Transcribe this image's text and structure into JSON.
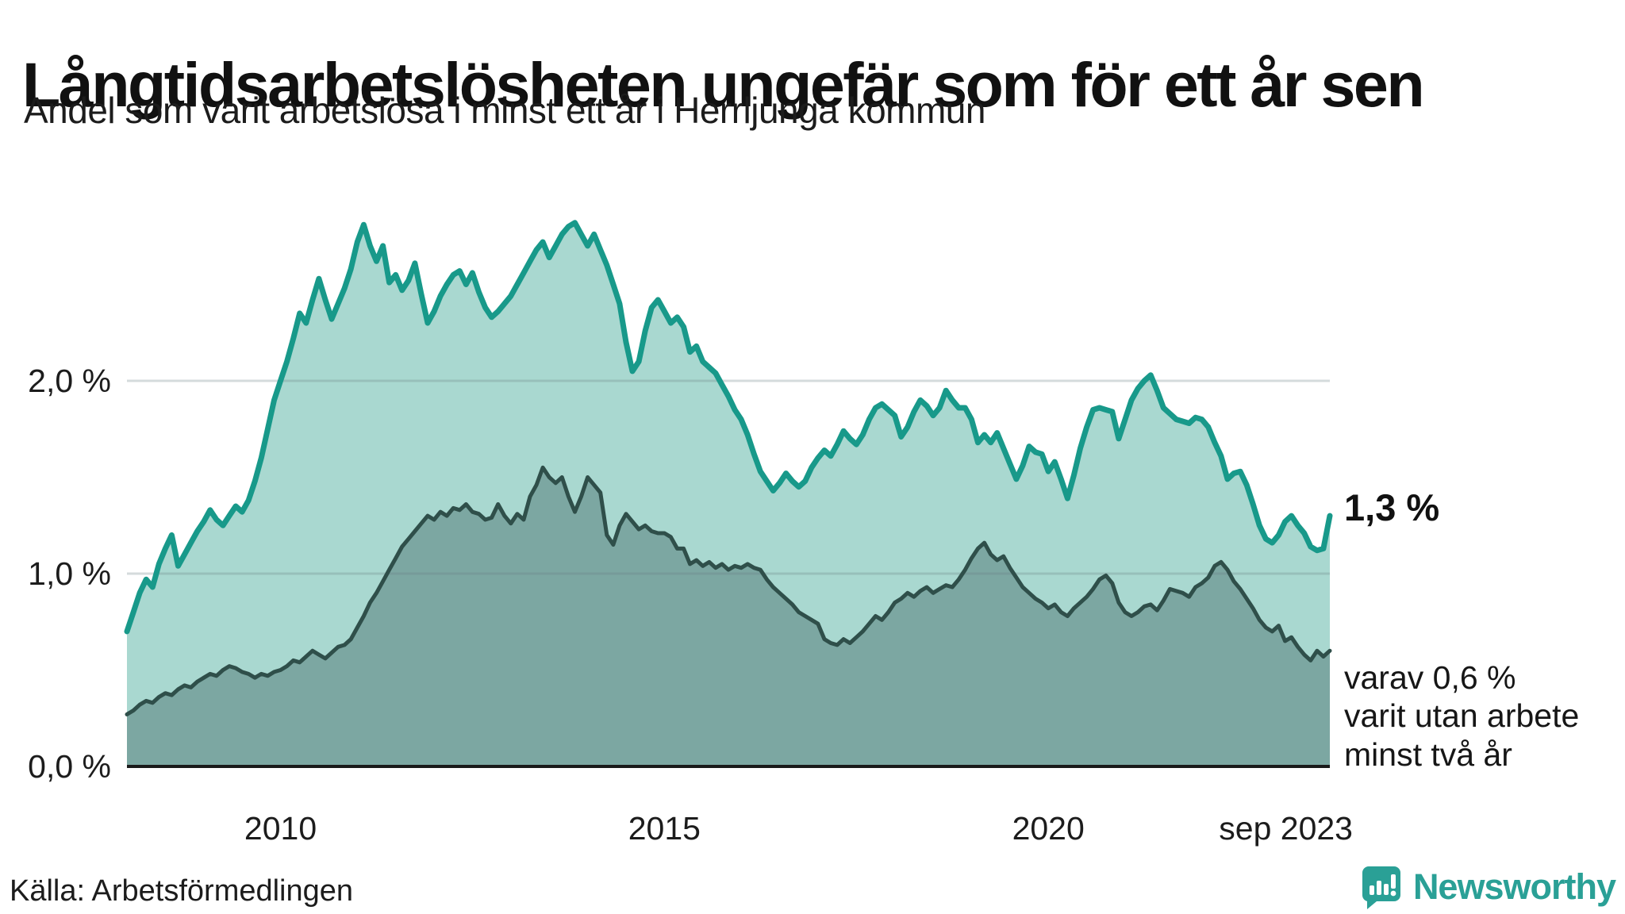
{
  "header": {
    "title": "Långtidsarbetslösheten ungefär som för ett år sen",
    "subtitle": "Andel som varit arbetslösa i minst ett år i Herrljunga kommun"
  },
  "chart_data": {
    "type": "area",
    "title": "Långtidsarbetslösheten ungefär som för ett år sen",
    "subtitle": "Andel som varit arbetslösa i minst ett år i Herrljunga kommun",
    "unit": "%",
    "frequency": "monthly",
    "start": "2008-01",
    "end": "2023-09",
    "ylim": [
      0,
      3.2
    ],
    "grid": "horizontal-only",
    "legend_position": "none",
    "colors": {
      "line_primary": "#18998a",
      "fill_primary": "#a9d8d0",
      "line_secondary": "#2f4f4a",
      "fill_secondary": "#7ca7a2",
      "gridline": "rgba(105,125,130,0.28)",
      "baseline": "#1a1a1a",
      "brand_teal": "#2aa096"
    },
    "y_ticks": [
      {
        "label": "0,0 %",
        "value": 0
      },
      {
        "label": "1,0 %",
        "value": 1
      },
      {
        "label": "2,0 %",
        "value": 2
      }
    ],
    "x_ticks": [
      {
        "label": "2010",
        "t": 2010,
        "anchor": "middle"
      },
      {
        "label": "2015",
        "t": 2015,
        "anchor": "middle"
      },
      {
        "label": "2020",
        "t": 2020,
        "anchor": "middle"
      },
      {
        "label": "sep 2023",
        "t": 2023.708,
        "anchor": "end"
      }
    ],
    "series": [
      {
        "name": "Andel arbetslösa minst ett år",
        "end_value_label": "1,3 %",
        "values": [
          0.7,
          0.8,
          0.9,
          0.97,
          0.93,
          1.05,
          1.13,
          1.2,
          1.04,
          1.1,
          1.16,
          1.22,
          1.27,
          1.33,
          1.28,
          1.25,
          1.3,
          1.35,
          1.32,
          1.38,
          1.48,
          1.6,
          1.75,
          1.9,
          2.0,
          2.1,
          2.22,
          2.35,
          2.3,
          2.42,
          2.53,
          2.42,
          2.32,
          2.4,
          2.48,
          2.58,
          2.72,
          2.81,
          2.7,
          2.62,
          2.7,
          2.51,
          2.55,
          2.47,
          2.52,
          2.61,
          2.45,
          2.3,
          2.36,
          2.44,
          2.5,
          2.55,
          2.57,
          2.5,
          2.56,
          2.46,
          2.38,
          2.33,
          2.36,
          2.4,
          2.44,
          2.5,
          2.56,
          2.62,
          2.68,
          2.72,
          2.64,
          2.7,
          2.76,
          2.8,
          2.82,
          2.76,
          2.7,
          2.76,
          2.68,
          2.6,
          2.5,
          2.4,
          2.2,
          2.05,
          2.1,
          2.26,
          2.38,
          2.42,
          2.36,
          2.3,
          2.33,
          2.28,
          2.15,
          2.18,
          2.1,
          2.07,
          2.04,
          1.98,
          1.92,
          1.85,
          1.8,
          1.72,
          1.62,
          1.53,
          1.48,
          1.43,
          1.47,
          1.52,
          1.48,
          1.45,
          1.48,
          1.55,
          1.6,
          1.64,
          1.61,
          1.67,
          1.74,
          1.7,
          1.67,
          1.72,
          1.8,
          1.86,
          1.88,
          1.85,
          1.82,
          1.71,
          1.76,
          1.84,
          1.9,
          1.87,
          1.82,
          1.86,
          1.95,
          1.9,
          1.86,
          1.86,
          1.8,
          1.68,
          1.72,
          1.68,
          1.73,
          1.65,
          1.57,
          1.49,
          1.56,
          1.66,
          1.63,
          1.62,
          1.53,
          1.58,
          1.49,
          1.39,
          1.51,
          1.65,
          1.76,
          1.85,
          1.86,
          1.85,
          1.84,
          1.7,
          1.8,
          1.9,
          1.96,
          2.0,
          2.03,
          1.95,
          1.86,
          1.83,
          1.8,
          1.79,
          1.78,
          1.81,
          1.8,
          1.76,
          1.68,
          1.61,
          1.49,
          1.52,
          1.53,
          1.46,
          1.36,
          1.25,
          1.18,
          1.16,
          1.2,
          1.27,
          1.3,
          1.25,
          1.21,
          1.14,
          1.12,
          1.13,
          1.3
        ]
      },
      {
        "name": "varav utan arbete minst två år",
        "end_value_label": "varav 0,6 %",
        "values": [
          0.27,
          0.29,
          0.32,
          0.34,
          0.33,
          0.36,
          0.38,
          0.37,
          0.4,
          0.42,
          0.41,
          0.44,
          0.46,
          0.48,
          0.47,
          0.5,
          0.52,
          0.51,
          0.49,
          0.48,
          0.46,
          0.48,
          0.47,
          0.49,
          0.5,
          0.52,
          0.55,
          0.54,
          0.57,
          0.6,
          0.58,
          0.56,
          0.59,
          0.62,
          0.63,
          0.66,
          0.72,
          0.78,
          0.85,
          0.9,
          0.96,
          1.02,
          1.08,
          1.14,
          1.18,
          1.22,
          1.26,
          1.3,
          1.28,
          1.32,
          1.3,
          1.34,
          1.33,
          1.36,
          1.32,
          1.31,
          1.28,
          1.29,
          1.36,
          1.3,
          1.26,
          1.31,
          1.28,
          1.4,
          1.46,
          1.55,
          1.5,
          1.47,
          1.5,
          1.4,
          1.32,
          1.4,
          1.5,
          1.46,
          1.42,
          1.2,
          1.15,
          1.25,
          1.31,
          1.27,
          1.23,
          1.25,
          1.22,
          1.21,
          1.21,
          1.19,
          1.13,
          1.13,
          1.05,
          1.07,
          1.04,
          1.06,
          1.03,
          1.05,
          1.02,
          1.04,
          1.03,
          1.05,
          1.03,
          1.02,
          0.97,
          0.93,
          0.9,
          0.87,
          0.84,
          0.8,
          0.78,
          0.76,
          0.74,
          0.66,
          0.64,
          0.63,
          0.66,
          0.64,
          0.67,
          0.7,
          0.74,
          0.78,
          0.76,
          0.8,
          0.85,
          0.87,
          0.9,
          0.88,
          0.91,
          0.93,
          0.9,
          0.92,
          0.94,
          0.93,
          0.97,
          1.02,
          1.08,
          1.13,
          1.16,
          1.1,
          1.07,
          1.09,
          1.03,
          0.98,
          0.93,
          0.9,
          0.87,
          0.85,
          0.82,
          0.84,
          0.8,
          0.78,
          0.82,
          0.85,
          0.88,
          0.92,
          0.97,
          0.99,
          0.95,
          0.85,
          0.8,
          0.78,
          0.8,
          0.83,
          0.84,
          0.81,
          0.86,
          0.92,
          0.91,
          0.9,
          0.88,
          0.93,
          0.95,
          0.98,
          1.04,
          1.06,
          1.02,
          0.96,
          0.92,
          0.87,
          0.82,
          0.76,
          0.72,
          0.7,
          0.73,
          0.65,
          0.67,
          0.62,
          0.58,
          0.55,
          0.6,
          0.57,
          0.6
        ]
      }
    ]
  },
  "annotations": {
    "primary_value": "1,3 %",
    "secondary_lines": [
      "varav 0,6 %",
      "varit utan arbete",
      "minst två år"
    ]
  },
  "footer": {
    "source": "Källa: Arbetsförmedlingen",
    "brand_name": "Newsworthy"
  }
}
